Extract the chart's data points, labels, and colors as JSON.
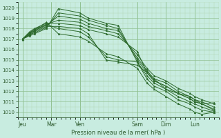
{
  "bg_color": "#c8ece0",
  "grid_major_color": "#90c090",
  "grid_minor_color": "#b0d8b0",
  "line_color": "#2d6a2d",
  "marker_color": "#2d6a2d",
  "xlabel": "Pression niveau de la mer( hPa )",
  "ylim": [
    1009.5,
    1020.5
  ],
  "yticks": [
    1010,
    1011,
    1012,
    1013,
    1014,
    1015,
    1016,
    1017,
    1018,
    1019,
    1020
  ],
  "xtick_labels": [
    "Jeu",
    "Mar",
    "Ven",
    "Sam",
    "Dim",
    "Lun"
  ],
  "xtick_positions": [
    0,
    24,
    48,
    96,
    120,
    144
  ],
  "xlim": [
    -4,
    164
  ],
  "series": [
    [
      0,
      6,
      10,
      20,
      30,
      48,
      55,
      70,
      80,
      96,
      104,
      110,
      120,
      130,
      140,
      144,
      150,
      160
    ],
    [
      1017.0,
      1017.3,
      1017.5,
      1018.0,
      1019.9,
      1019.5,
      1019.0,
      1018.5,
      1018.3,
      1014.8,
      1013.5,
      1012.8,
      1012.2,
      1011.5,
      1011.0,
      1010.8,
      1010.5,
      1010.1
    ],
    [
      1017.0,
      1017.4,
      1017.6,
      1018.1,
      1019.5,
      1019.2,
      1018.8,
      1018.3,
      1018.0,
      1015.0,
      1013.8,
      1013.0,
      1012.5,
      1011.8,
      1011.3,
      1011.0,
      1010.8,
      1010.3
    ],
    [
      1017.0,
      1017.5,
      1017.8,
      1018.3,
      1019.2,
      1018.9,
      1018.5,
      1018.0,
      1017.8,
      1015.2,
      1014.0,
      1013.2,
      1012.8,
      1012.0,
      1011.5,
      1011.2,
      1011.0,
      1010.5
    ],
    [
      1017.0,
      1017.6,
      1017.9,
      1018.4,
      1018.8,
      1018.6,
      1018.2,
      1017.8,
      1017.5,
      1015.5,
      1014.2,
      1013.5,
      1013.0,
      1012.3,
      1011.8,
      1011.5,
      1011.2,
      1010.8
    ],
    [
      1017.0,
      1017.7,
      1018.0,
      1018.5,
      1018.5,
      1018.3,
      1017.9,
      1017.5,
      1017.2,
      1015.8,
      1013.8,
      1013.0,
      1012.5,
      1011.8,
      1011.3,
      1011.0,
      1010.8,
      1010.2
    ],
    [
      1017.0,
      1017.4,
      1017.7,
      1018.2,
      1018.2,
      1018.0,
      1017.5,
      1015.0,
      1014.8,
      1014.5,
      1013.8,
      1013.2,
      1012.2,
      1011.8,
      1011.5,
      1011.2,
      1010.8,
      1010.9
    ],
    [
      1017.0,
      1017.5,
      1017.8,
      1018.4,
      1018.0,
      1017.7,
      1017.2,
      1015.3,
      1015.0,
      1014.8,
      1013.2,
      1012.5,
      1012.0,
      1011.2,
      1010.8,
      1010.5,
      1010.2,
      1010.0
    ],
    [
      1017.0,
      1017.6,
      1017.9,
      1018.6,
      1017.5,
      1017.2,
      1016.8,
      1015.6,
      1015.3,
      1014.2,
      1012.8,
      1012.2,
      1011.5,
      1010.8,
      1010.3,
      1010.0,
      1009.8,
      1010.0
    ]
  ]
}
